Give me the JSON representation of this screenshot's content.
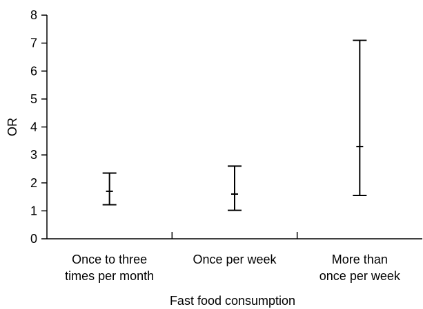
{
  "chart_data": {
    "type": "error-bar",
    "title": "",
    "xlabel": "Fast food consumption",
    "ylabel": "OR",
    "ylim": [
      0,
      8
    ],
    "yticks": [
      0,
      1,
      2,
      3,
      4,
      5,
      6,
      7,
      8
    ],
    "grid": false,
    "categories": [
      [
        "Once to three",
        "times per month"
      ],
      [
        "Once per week"
      ],
      [
        "More than",
        "once per week"
      ]
    ],
    "points": [
      {
        "or": 1.7,
        "lower": 1.22,
        "upper": 2.35
      },
      {
        "or": 1.6,
        "lower": 1.02,
        "upper": 2.6
      },
      {
        "or": 3.3,
        "lower": 1.55,
        "upper": 7.1
      }
    ],
    "colors": {
      "axis": "#000000",
      "marks": "#000000"
    }
  }
}
